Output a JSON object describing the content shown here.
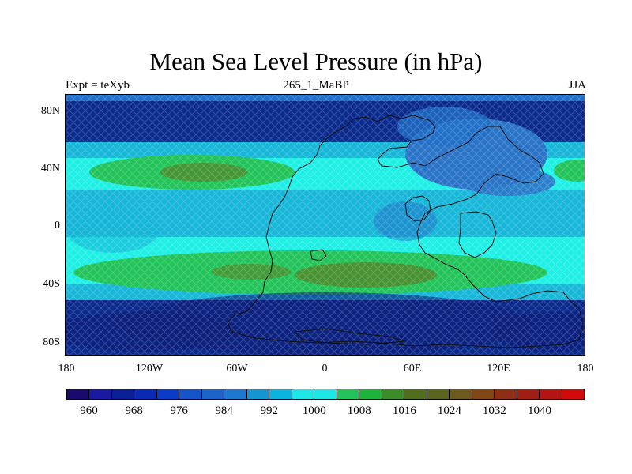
{
  "title": "Mean Sea Level Pressure (in hPa)",
  "left_subtitle": "Expt = teXyb",
  "center_subtitle": "265_1_MaBP",
  "right_subtitle": "JJA",
  "map": {
    "lon_ticks": [
      "180",
      "120W",
      "60W",
      "0",
      "60E",
      "120E",
      "180"
    ],
    "lat_ticks": [
      "80N",
      "40N",
      "0",
      "40S",
      "80S"
    ],
    "band_colors": {
      "polar_low": "#0a2a8c",
      "subpolar": "#1f6fc8",
      "midlat": "#16b7d8",
      "cyan": "#1ef0e6",
      "green": "#22c45a",
      "olive": "#4e8a2a",
      "brown": "#7a4a20",
      "land_blue": "#2a74c8"
    }
  },
  "colorbar": {
    "colors": [
      "#1a0a6e",
      "#1a1aa0",
      "#0a1e96",
      "#0a2ab4",
      "#0a3cc8",
      "#1454c8",
      "#1e64c8",
      "#1e78d0",
      "#1496d2",
      "#0ab4dc",
      "#1ee6e6",
      "#1ee6e6",
      "#22c35a",
      "#1eb43c",
      "#3c8c28",
      "#506e1e",
      "#5a641e",
      "#6e5a1e",
      "#824614",
      "#8c2d14",
      "#a01e14",
      "#b41414",
      "#d20a0a"
    ],
    "labels": [
      "960",
      "968",
      "976",
      "984",
      "992",
      "1000",
      "1008",
      "1016",
      "1024",
      "1032",
      "1040"
    ]
  }
}
